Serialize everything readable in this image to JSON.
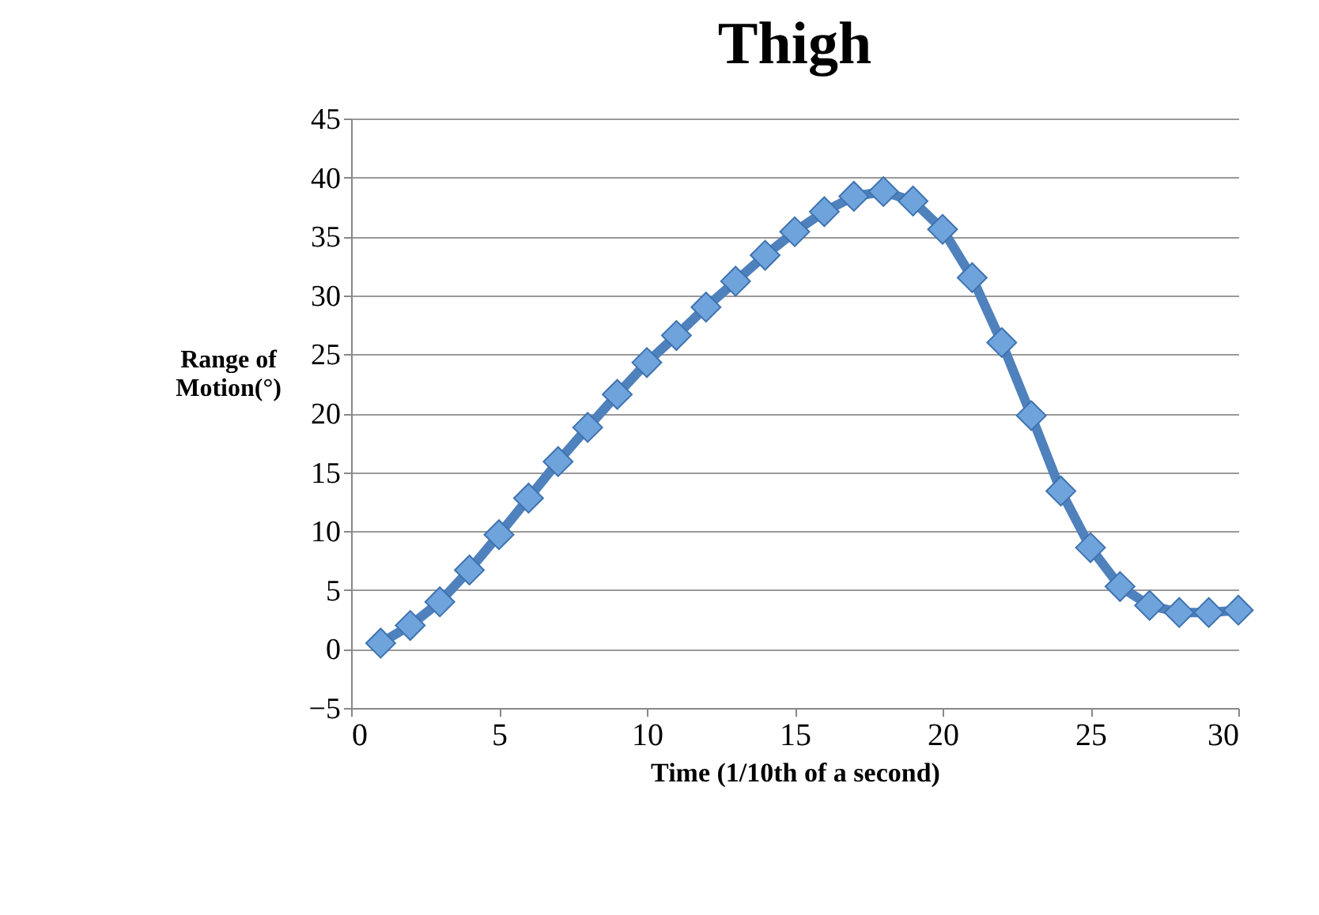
{
  "chart_data": {
    "type": "line",
    "title": "Thigh",
    "xlabel": "Time (1/10th of a second)",
    "ylabel": "Range of Motion(°)",
    "x": [
      1,
      2,
      3,
      4,
      5,
      6,
      7,
      8,
      9,
      10,
      11,
      12,
      13,
      14,
      15,
      16,
      17,
      18,
      19,
      20,
      21,
      22,
      23,
      24,
      25,
      26,
      27,
      28,
      29,
      30
    ],
    "series": [
      {
        "color": "#4f81bd",
        "values": [
          0.5,
          2,
          4,
          6.7,
          9.7,
          12.8,
          15.9,
          18.8,
          21.6,
          24.3,
          26.6,
          29,
          31.2,
          33.4,
          35.4,
          37.1,
          38.4,
          38.8,
          38,
          35.6,
          31.5,
          26,
          19.8,
          13.4,
          8.6,
          5.3,
          3.7,
          3.1,
          3.1,
          3.3
        ]
      }
    ],
    "xlim": [
      0,
      30
    ],
    "xticks": [
      0,
      5,
      10,
      15,
      20,
      25,
      30
    ],
    "ylim": [
      -5,
      45
    ],
    "yticks": [
      -5,
      0,
      5,
      10,
      15,
      20,
      25,
      30,
      35,
      40,
      45
    ],
    "grid": "y",
    "marker": "diamond",
    "line_style": "solid"
  }
}
